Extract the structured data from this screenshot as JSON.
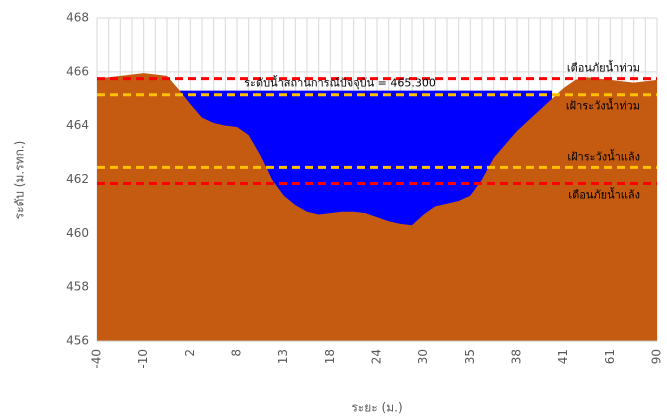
{
  "chart_data": {
    "type": "cross-section",
    "x_label": "ระยะ (ม.)",
    "y_label": "ระดับ (ม.รทก.)",
    "categories": [
      "-40",
      null,
      null,
      null,
      "-10",
      null,
      null,
      null,
      "2",
      null,
      null,
      null,
      "8",
      null,
      null,
      null,
      "13",
      null,
      null,
      null,
      "18",
      null,
      null,
      null,
      "24",
      null,
      null,
      null,
      "30",
      null,
      null,
      null,
      "35",
      null,
      null,
      null,
      "38",
      null,
      null,
      null,
      "41",
      null,
      null,
      null,
      "61",
      null,
      null,
      null,
      "90"
    ],
    "series": [
      {
        "name": "ground",
        "color": "#c55a11",
        "values": [
          465.75,
          465.8,
          465.85,
          465.9,
          465.95,
          465.9,
          465.85,
          465.35,
          464.8,
          464.3,
          464.1,
          464.0,
          463.95,
          463.65,
          462.9,
          462.0,
          461.4,
          461.05,
          460.8,
          460.7,
          460.75,
          460.8,
          460.8,
          460.75,
          460.6,
          460.45,
          460.35,
          460.3,
          460.7,
          461.0,
          461.1,
          461.2,
          461.4,
          462.0,
          462.8,
          463.3,
          463.8,
          464.2,
          464.6,
          465.0,
          465.4,
          465.7,
          465.8,
          465.75,
          465.7,
          465.65,
          465.6,
          465.65,
          465.7
        ]
      },
      {
        "name": "water",
        "color": "#0000ff",
        "values": [
          null,
          null,
          null,
          null,
          null,
          null,
          null,
          465.3,
          465.3,
          465.3,
          465.3,
          465.3,
          465.3,
          465.3,
          465.3,
          465.3,
          465.3,
          465.3,
          465.3,
          465.3,
          465.3,
          465.3,
          465.3,
          465.3,
          465.3,
          465.3,
          465.3,
          465.3,
          465.3,
          465.3,
          465.3,
          465.3,
          465.3,
          465.3,
          465.3,
          465.3,
          465.3,
          465.3,
          465.3,
          465.3,
          null,
          null,
          null,
          null,
          null,
          null,
          null,
          null,
          null
        ]
      }
    ],
    "water_label": "ระดับน้ำสถานการณ์ปัจจุบัน = 465.300",
    "reference_lines": [
      {
        "label": "เตือนภัยน้ำท่วม",
        "value": 465.75,
        "color": "#ff0000"
      },
      {
        "label": "เฝ้าระวังน้ำท่วม",
        "value": 465.15,
        "color": "#ffc000"
      },
      {
        "label": "เฝ้าระวังน้ำแล้ง",
        "value": 462.45,
        "color": "#ffc000"
      },
      {
        "label": "เตือนภัยน้ำแล้ง",
        "value": 461.85,
        "color": "#ff0000"
      }
    ],
    "ylim": [
      456,
      468
    ],
    "yticks": [
      456,
      458,
      460,
      462,
      464,
      466,
      468
    ],
    "grid": true
  }
}
